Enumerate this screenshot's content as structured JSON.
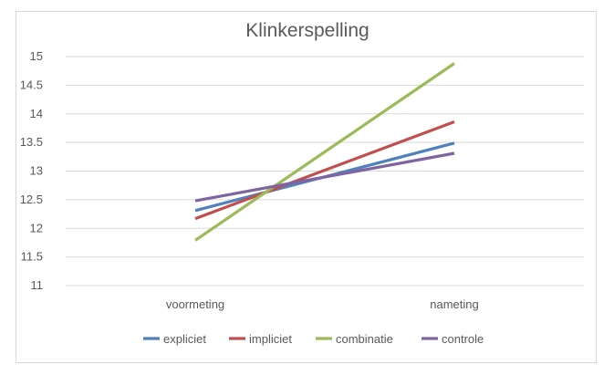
{
  "chart_data": {
    "type": "line",
    "title": "Klinkerspelling",
    "xlabel": "",
    "ylabel": "",
    "categories": [
      "voormeting",
      "nameting"
    ],
    "ylim": [
      11,
      15
    ],
    "y_ticks": [
      "15",
      "14.5",
      "14",
      "13.5",
      "13",
      "12.5",
      "12",
      "11.5",
      "11"
    ],
    "grid": true,
    "legend_position": "bottom",
    "series": [
      {
        "name": "expliciet",
        "color": "#4f81bd",
        "values": [
          12.31,
          13.49
        ]
      },
      {
        "name": "impliciet",
        "color": "#c0504d",
        "values": [
          12.17,
          13.86
        ]
      },
      {
        "name": "combinatie",
        "color": "#9bbb59",
        "values": [
          11.79,
          14.88
        ]
      },
      {
        "name": "controle",
        "color": "#8064a2",
        "values": [
          12.48,
          13.31
        ]
      }
    ]
  }
}
